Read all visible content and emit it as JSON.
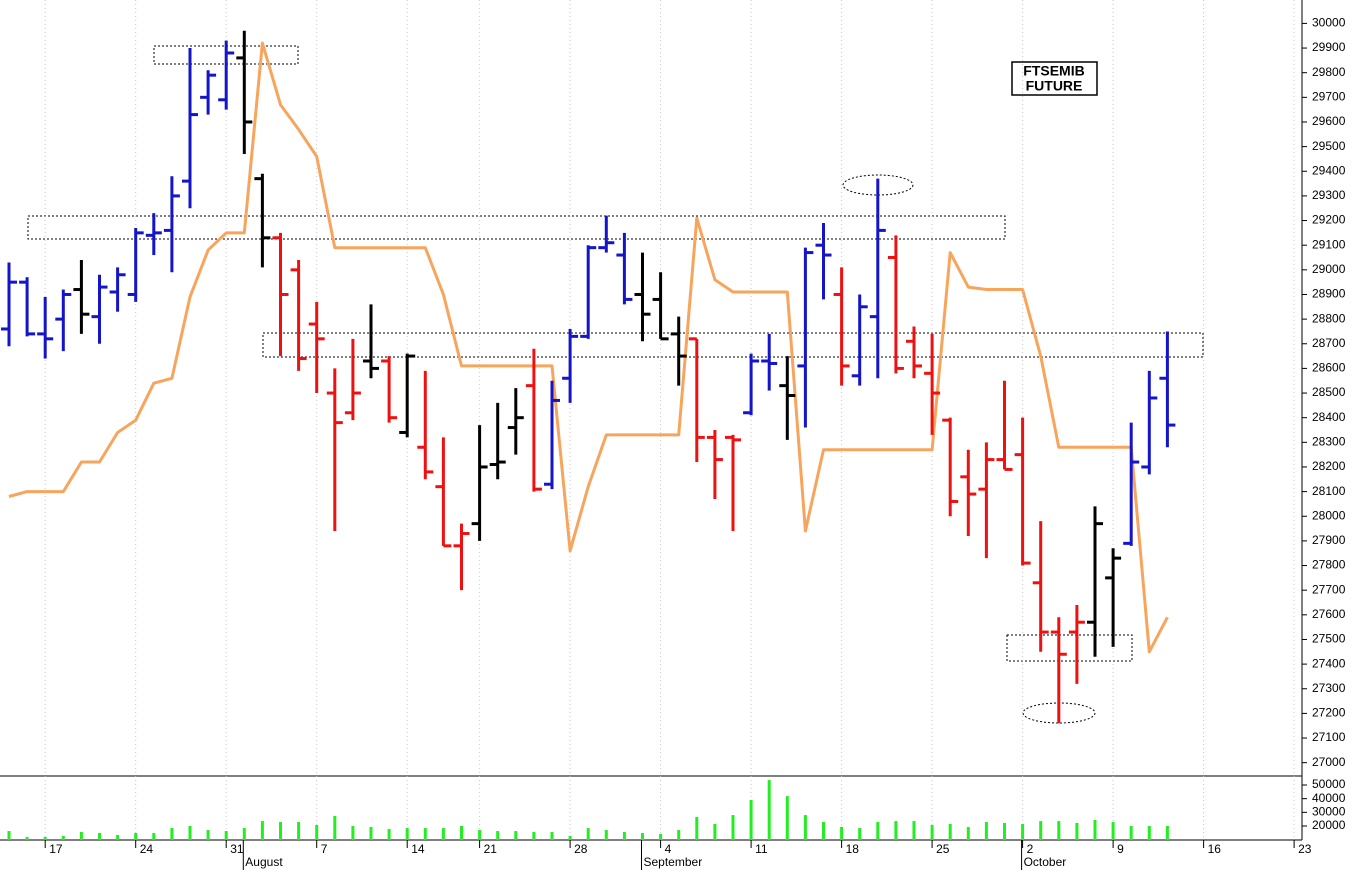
{
  "chart_data": {
    "type": "ohlc",
    "title": [
      "FTSEMIB",
      "FUTURE"
    ],
    "categories": [
      null,
      null,
      "17",
      null,
      null,
      null,
      null,
      "24",
      null,
      null,
      null,
      null,
      "31",
      null,
      null,
      null,
      null,
      "7",
      null,
      null,
      null,
      null,
      "14",
      null,
      null,
      null,
      "21",
      null,
      null,
      null,
      null,
      "28",
      null,
      null,
      null,
      null,
      "4",
      null,
      null,
      null,
      null,
      "11",
      null,
      null,
      null,
      null,
      "18",
      null,
      null,
      null,
      null,
      "25",
      null,
      null,
      null,
      null,
      "2",
      null,
      null,
      null,
      null,
      "9",
      null,
      null,
      null,
      null,
      "16",
      null,
      null,
      null,
      null,
      "23"
    ],
    "months": [
      null,
      null,
      null,
      null,
      null,
      null,
      null,
      null,
      null,
      null,
      null,
      null,
      null,
      "August",
      null,
      null,
      null,
      null,
      null,
      null,
      null,
      null,
      null,
      null,
      null,
      null,
      null,
      null,
      null,
      null,
      null,
      null,
      null,
      null,
      null,
      "September",
      null,
      null,
      null,
      null,
      null,
      null,
      null,
      null,
      null,
      null,
      null,
      null,
      null,
      null,
      null,
      null,
      null,
      null,
      null,
      null,
      "October",
      null,
      null,
      null,
      null,
      null,
      null,
      null,
      null,
      null,
      null,
      null,
      null,
      null,
      null,
      null
    ],
    "open": [
      28760,
      28950,
      28740,
      28800,
      28920,
      28810,
      28910,
      28900,
      29140,
      29160,
      29360,
      29700,
      29690,
      29860,
      29370,
      29130,
      29000,
      28780,
      28500,
      28420,
      28630,
      28630,
      28340,
      28280,
      28120,
      27880,
      27970,
      28210,
      28360,
      28530,
      28130,
      28560,
      28730,
      29090,
      29060,
      28900,
      28880,
      28740,
      28720,
      28320,
      28320,
      28420,
      28630,
      28530,
      28610,
      29100,
      28900,
      28570,
      28810,
      29050,
      28710,
      28580,
      28390,
      28160,
      28110,
      28230,
      28250,
      27730,
      27530,
      27530,
      27570,
      27750,
      27890,
      28200,
      28560,
      null,
      null,
      null,
      null,
      null,
      null,
      null
    ],
    "high": [
      29030,
      28970,
      28890,
      28920,
      29040,
      28980,
      29010,
      29170,
      29230,
      29380,
      29900,
      29810,
      29930,
      29970,
      29390,
      29150,
      29040,
      28870,
      28600,
      28720,
      28860,
      28650,
      28660,
      28590,
      28320,
      27970,
      28370,
      28460,
      28520,
      28680,
      28550,
      28760,
      29100,
      29220,
      29150,
      29070,
      28990,
      28810,
      28720,
      28350,
      28330,
      28660,
      28740,
      28650,
      29090,
      29190,
      29010,
      28900,
      29370,
      29140,
      28770,
      28740,
      28400,
      28270,
      28300,
      28550,
      28400,
      27980,
      27590,
      27640,
      28040,
      27870,
      28380,
      28590,
      28750,
      null,
      null,
      null,
      null,
      null,
      null,
      null
    ],
    "low": [
      28690,
      28730,
      28640,
      28670,
      28740,
      28700,
      28830,
      28870,
      29060,
      28990,
      29250,
      29630,
      29650,
      29470,
      29010,
      28650,
      28590,
      28500,
      27940,
      28390,
      28560,
      28380,
      28320,
      28150,
      27880,
      27700,
      27900,
      28150,
      28250,
      28100,
      28110,
      28460,
      28720,
      29070,
      28860,
      28710,
      28720,
      28530,
      28220,
      28070,
      27940,
      28410,
      28510,
      28310,
      28360,
      28880,
      28530,
      28530,
      28560,
      28580,
      28560,
      28330,
      28000,
      27920,
      27830,
      28190,
      27800,
      27450,
      27160,
      27320,
      27430,
      27470,
      27880,
      28170,
      28280,
      null,
      null,
      null,
      null,
      null,
      null,
      null
    ],
    "close": [
      28950,
      28740,
      28720,
      28900,
      28820,
      28930,
      28980,
      29150,
      29150,
      29300,
      29630,
      29790,
      29880,
      29600,
      29130,
      28900,
      28640,
      28720,
      28380,
      28500,
      28600,
      28400,
      28650,
      28180,
      27880,
      27930,
      28200,
      28220,
      28400,
      28110,
      28470,
      28730,
      29090,
      29110,
      28880,
      28820,
      28720,
      28650,
      28320,
      28230,
      28310,
      28630,
      28620,
      28490,
      29070,
      29060,
      28610,
      28850,
      29160,
      28600,
      28610,
      28500,
      28060,
      28090,
      28230,
      28190,
      27810,
      27530,
      27440,
      27570,
      27970,
      27830,
      28220,
      28480,
      28370,
      null,
      null,
      null,
      null,
      null,
      null,
      null
    ],
    "bar_colors": [
      "#1414c8",
      "#1414c8",
      "#1414c8",
      "#1414c8",
      "#000000",
      "#1414c8",
      "#1414c8",
      "#1414c8",
      "#1414c8",
      "#1414c8",
      "#1414c8",
      "#1414c8",
      "#1414c8",
      "#000000",
      "#000000",
      "#ee1111",
      "#ee1111",
      "#ee1111",
      "#ee1111",
      "#ee1111",
      "#000000",
      "#ee1111",
      "#000000",
      "#ee1111",
      "#ee1111",
      "#ee1111",
      "#000000",
      "#000000",
      "#000000",
      "#ee1111",
      "#1414c8",
      "#1414c8",
      "#1414c8",
      "#1414c8",
      "#1414c8",
      "#000000",
      "#000000",
      "#000000",
      "#ee1111",
      "#ee1111",
      "#ee1111",
      "#1414c8",
      "#1414c8",
      "#000000",
      "#1414c8",
      "#1414c8",
      "#ee1111",
      "#1414c8",
      "#1414c8",
      "#ee1111",
      "#ee1111",
      "#ee1111",
      "#ee1111",
      "#ee1111",
      "#ee1111",
      "#ee1111",
      "#ee1111",
      "#ee1111",
      "#ee1111",
      "#ee1111",
      "#000000",
      "#000000",
      "#1414c8",
      "#1414c8",
      "#1414c8",
      null,
      null,
      null,
      null,
      null,
      null,
      null
    ],
    "overlay": {
      "color": "#f7a55c",
      "values": [
        28080,
        28100,
        28100,
        28100,
        28220,
        28220,
        28340,
        28390,
        28540,
        28560,
        28890,
        29080,
        29150,
        29150,
        29920,
        29670,
        29570,
        29460,
        29090,
        29090,
        29090,
        29090,
        29090,
        29090,
        28900,
        28610,
        28610,
        28610,
        28610,
        28610,
        28610,
        27860,
        28120,
        28330,
        28330,
        28330,
        28330,
        28330,
        29210,
        28960,
        28910,
        28910,
        28910,
        28910,
        27940,
        28270,
        28270,
        28270,
        28270,
        28270,
        28270,
        28270,
        29070,
        28930,
        28920,
        28920,
        28920,
        28650,
        28280,
        28280,
        28280,
        28280,
        28280,
        27450,
        27590,
        null,
        null,
        null,
        null,
        null,
        null,
        null
      ]
    },
    "ylim": [
      26950,
      30095
    ],
    "yticks": [
      27000,
      27100,
      27200,
      27300,
      27400,
      27500,
      27600,
      27700,
      27800,
      27900,
      28000,
      28100,
      28200,
      28300,
      28400,
      28500,
      28600,
      28700,
      28800,
      28900,
      29000,
      29100,
      29200,
      29300,
      29400,
      29500,
      29600,
      29700,
      29800,
      29900,
      30000
    ],
    "grid": true,
    "volume": {
      "color": "#22ee22",
      "values": [
        16300,
        12000,
        12000,
        12700,
        15600,
        14900,
        13400,
        14900,
        14900,
        18500,
        20000,
        17100,
        16300,
        18500,
        23600,
        22900,
        22900,
        20700,
        27300,
        20000,
        19300,
        17800,
        18500,
        18500,
        18500,
        20000,
        17100,
        16300,
        16300,
        15600,
        15600,
        12700,
        18500,
        17100,
        15600,
        14900,
        14200,
        17100,
        26600,
        21500,
        28000,
        39000,
        53600,
        41900,
        28000,
        22900,
        19300,
        18500,
        22900,
        23600,
        23600,
        20700,
        21500,
        19300,
        22900,
        22200,
        21500,
        23600,
        23600,
        22200,
        24400,
        22900,
        20000,
        20000,
        20000,
        null,
        null,
        null,
        null,
        null,
        null,
        null
      ],
      "ylim": [
        9750,
        56600
      ],
      "yticks": [
        20000,
        30000,
        40000,
        50000
      ]
    }
  }
}
